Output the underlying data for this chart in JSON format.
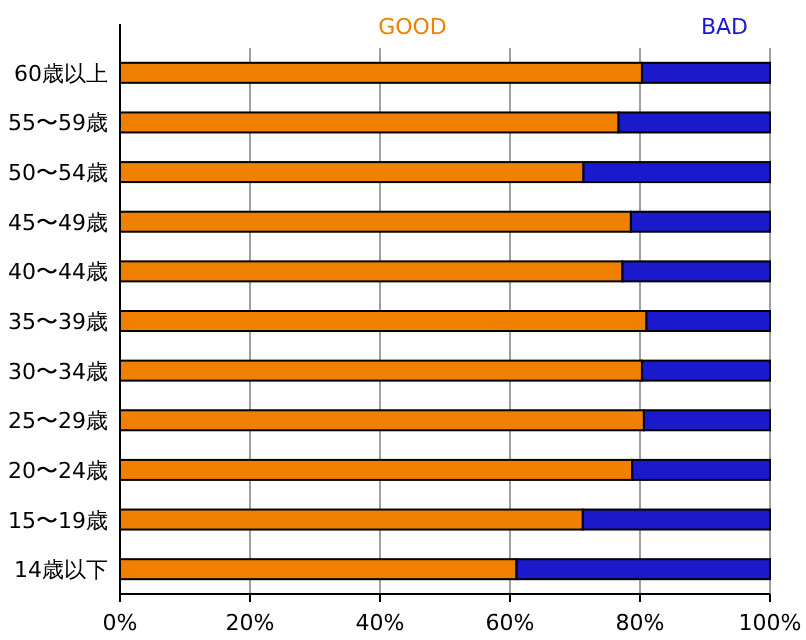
{
  "chart_data": {
    "type": "bar",
    "orientation": "horizontal",
    "stacked": true,
    "categories": [
      "60歳以上",
      "55〜59歳",
      "50〜54歳",
      "45〜49歳",
      "40〜44歳",
      "35〜39歳",
      "30〜34歳",
      "25〜29歳",
      "20〜24歳",
      "15〜19歳",
      "14歳以下"
    ],
    "series": [
      {
        "name": "GOOD",
        "color": "#f08000",
        "values": [
          80.3,
          76.7,
          71.3,
          78.6,
          77.3,
          81.0,
          80.3,
          80.6,
          78.8,
          71.2,
          61.0
        ]
      },
      {
        "name": "BAD",
        "color": "#1a1acc",
        "values": [
          19.7,
          23.3,
          28.7,
          21.4,
          22.7,
          19.0,
          19.7,
          19.4,
          21.2,
          28.8,
          39.0
        ]
      }
    ],
    "xlim": [
      0,
      100
    ],
    "xticks": [
      {
        "value": 0,
        "label": "0%"
      },
      {
        "value": 20,
        "label": "20%"
      },
      {
        "value": 40,
        "label": "40%"
      },
      {
        "value": 60,
        "label": "60%"
      },
      {
        "value": 80,
        "label": "80%"
      },
      {
        "value": 100,
        "label": "100%"
      }
    ],
    "grid": "x",
    "legend": "top"
  }
}
